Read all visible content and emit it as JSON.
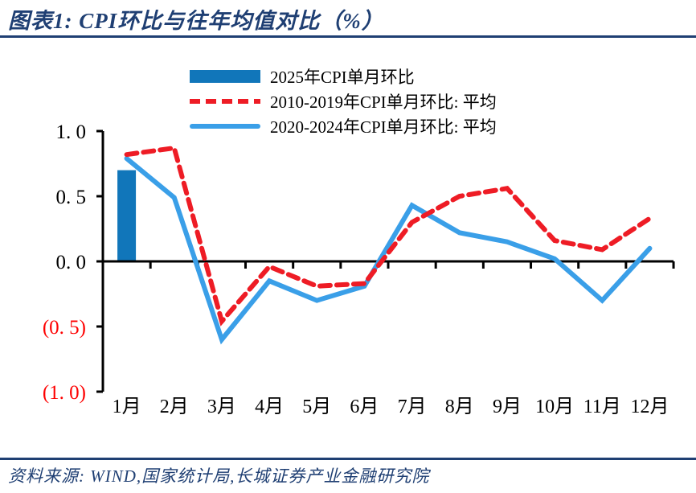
{
  "title": "图表1: CPI环比与往年均值对比（%）",
  "source": "资料来源: WIND,国家统计局,长城证券产业金融研究院",
  "colors": {
    "navy": "#1f3f73",
    "bar_blue": "#1176ba",
    "line_red": "#ee1c25",
    "line_blue": "#3a9fe8",
    "axis_black": "#000000",
    "negative_red": "#fe0000",
    "text_black": "#000000"
  },
  "legend": [
    {
      "label": "2025年CPI单月环比",
      "swatch": "bar",
      "color": "#1176ba"
    },
    {
      "label": "2010-2019年CPI单月环比: 平均",
      "swatch": "dashed",
      "color": "#ee1c25"
    },
    {
      "label": "2020-2024年CPI单月环比: 平均",
      "swatch": "solid",
      "color": "#3a9fe8"
    }
  ],
  "chart_data": {
    "type": "bar+line combo",
    "title": "图表1: CPI环比与往年均值对比（%）",
    "xlabel": "",
    "ylabel": "",
    "ylim": [
      -1.0,
      1.0
    ],
    "grid": false,
    "legend_position": "top",
    "categories": [
      "1月",
      "2月",
      "3月",
      "4月",
      "5月",
      "6月",
      "7月",
      "8月",
      "9月",
      "10月",
      "11月",
      "12月"
    ],
    "y_ticks": [
      {
        "label": "1. 0",
        "value": 1.0,
        "color": "#000000"
      },
      {
        "label": "0. 5",
        "value": 0.5,
        "color": "#000000"
      },
      {
        "label": "0. 0",
        "value": 0.0,
        "color": "#000000"
      },
      {
        "label": "(0. 5)",
        "value": -0.5,
        "color": "#fe0000"
      },
      {
        "label": "(1. 0)",
        "value": -1.0,
        "color": "#fe0000"
      }
    ],
    "series": [
      {
        "name": "2025年CPI单月环比",
        "type": "bar",
        "color": "#1176ba",
        "values": [
          0.7,
          null,
          null,
          null,
          null,
          null,
          null,
          null,
          null,
          null,
          null,
          null
        ]
      },
      {
        "name": "2010-2019年CPI单月环比: 平均",
        "type": "line",
        "dashed": true,
        "color": "#ee1c25",
        "values": [
          0.82,
          0.87,
          -0.46,
          -0.04,
          -0.19,
          -0.17,
          0.3,
          0.5,
          0.56,
          0.16,
          0.09,
          0.33
        ]
      },
      {
        "name": "2020-2024年CPI单月环比: 平均",
        "type": "line",
        "dashed": false,
        "color": "#3a9fe8",
        "values": [
          0.79,
          0.49,
          -0.6,
          -0.15,
          -0.3,
          -0.19,
          0.43,
          0.22,
          0.15,
          0.02,
          -0.3,
          0.1
        ]
      }
    ]
  }
}
